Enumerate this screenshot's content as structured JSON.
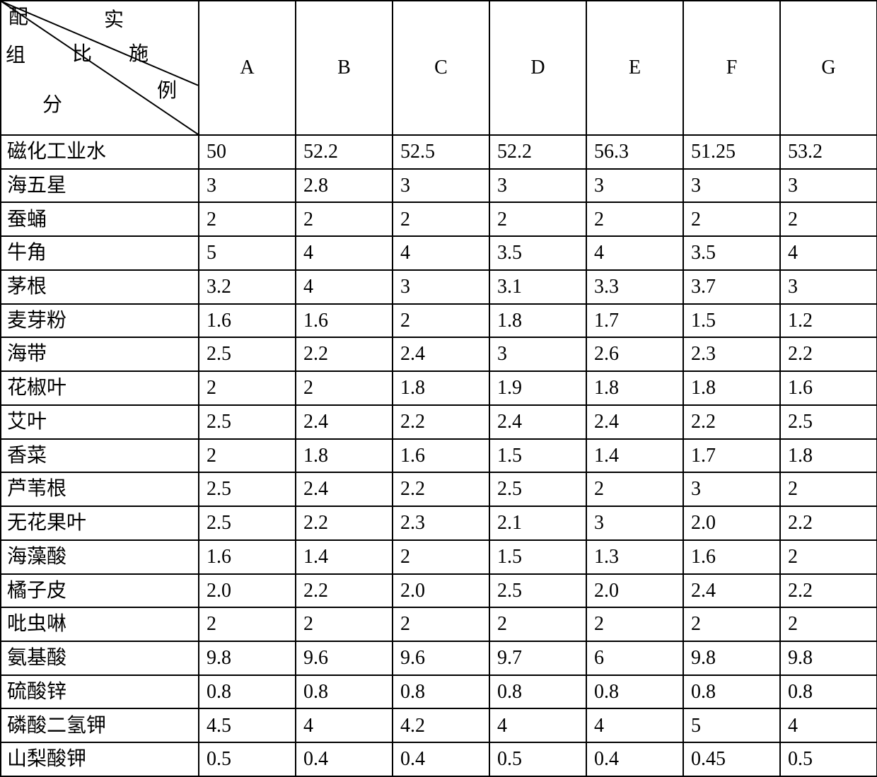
{
  "table": {
    "type": "table",
    "border_color": "#000000",
    "background_color": "#ffffff",
    "text_color": "#000000",
    "font_family": "SimSun",
    "cell_fontsize": 28,
    "header_fontsize": 28,
    "corner": {
      "labels": {
        "top": "配",
        "mid_upper": "实",
        "left_mid": "组",
        "center": "比",
        "right_mid": "施",
        "bottom_left": "分",
        "bottom_right": "例"
      },
      "diag_lines": {
        "stroke": "#000000",
        "stroke_width": 2,
        "line1_end": [
          280,
          120
        ],
        "line2_end": [
          280,
          190
        ]
      }
    },
    "columns": [
      "A",
      "B",
      "C",
      "D",
      "E",
      "F",
      "G"
    ],
    "rows": [
      {
        "label": "磁化工业水",
        "values": [
          "50",
          "52.2",
          "52.5",
          "52.2",
          "56.3",
          "51.25",
          "53.2"
        ]
      },
      {
        "label": "海五星",
        "values": [
          "3",
          "2.8",
          "3",
          "3",
          "3",
          "3",
          "3"
        ]
      },
      {
        "label": "蚕蛹",
        "values": [
          "2",
          "2",
          "2",
          "2",
          "2",
          "2",
          "2"
        ]
      },
      {
        "label": "牛角",
        "values": [
          "5",
          "4",
          "4",
          "3.5",
          "4",
          "3.5",
          "4"
        ]
      },
      {
        "label": "茅根",
        "values": [
          "3.2",
          "4",
          "3",
          "3.1",
          "3.3",
          "3.7",
          "3"
        ]
      },
      {
        "label": "麦芽粉",
        "values": [
          " 1.6",
          "1.6",
          "2",
          "1.8",
          "1.7",
          "1.5",
          "1.2"
        ]
      },
      {
        "label": "海带",
        "values": [
          "2.5",
          "2.2",
          "2.4",
          "3",
          "2.6",
          "2.3",
          "2.2"
        ]
      },
      {
        "label": "花椒叶",
        "values": [
          "2",
          "2",
          "1.8",
          "1.9",
          "1.8",
          "1.8",
          "1.6"
        ]
      },
      {
        "label": "艾叶",
        "values": [
          "2.5",
          "2.4",
          "2.2",
          "2.4",
          "2.4",
          "2.2",
          "2.5"
        ]
      },
      {
        "label": "香菜",
        "values": [
          "2",
          "1.8",
          "1.6",
          "1.5",
          "1.4",
          "1.7",
          "1.8"
        ]
      },
      {
        "label": "芦苇根",
        "values": [
          "2.5",
          "2.4",
          "2.2",
          "2.5",
          "2",
          "3",
          "2"
        ]
      },
      {
        "label": "无花果叶",
        "values": [
          "2.5",
          "2.2",
          "2.3",
          "2.1",
          "3",
          "2.0",
          "2.2"
        ]
      },
      {
        "label": "海藻酸",
        "values": [
          "1.6",
          "1.4",
          "2",
          "1.5",
          "1.3",
          "1.6",
          "2"
        ]
      },
      {
        "label": "橘子皮",
        "values": [
          "2.0",
          "2.2",
          "2.0",
          "2.5",
          "2.0",
          "2.4",
          "2.2"
        ]
      },
      {
        "label": "吡虫啉",
        "values": [
          "2",
          "2",
          "2",
          "2",
          "2",
          "2",
          "2"
        ]
      },
      {
        "label": "氨基酸",
        "values": [
          "9.8",
          "9.6",
          "9.6",
          "9.7",
          "6",
          "9.8",
          "9.8"
        ]
      },
      {
        "label": "硫酸锌",
        "values": [
          "0.8",
          "0.8",
          "0.8",
          "0.8",
          "0.8",
          "0.8",
          "0.8"
        ]
      },
      {
        "label": "磷酸二氢钾",
        "values": [
          "4.5",
          "4",
          "4.2",
          "4",
          "4",
          "5",
          "4"
        ]
      },
      {
        "label": "山梨酸钾",
        "values": [
          "0.5",
          "0.4",
          "0.4",
          "0.5",
          "0.4",
          "0.45",
          "0.5"
        ]
      }
    ]
  }
}
